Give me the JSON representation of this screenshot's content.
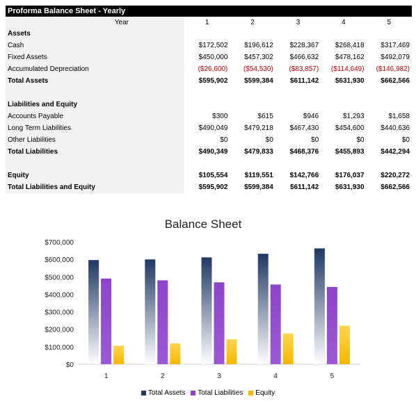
{
  "sheet": {
    "title": "Proforma Balance Sheet - Yearly",
    "year_label": "Year",
    "years": [
      "1",
      "2",
      "3",
      "4",
      "5"
    ],
    "rows": [
      {
        "label": "Assets",
        "style": "section",
        "values": []
      },
      {
        "label": "Cash",
        "style": "normal",
        "values": [
          "$172,502",
          "$196,612",
          "$228,367",
          "$268,418",
          "$317,469"
        ]
      },
      {
        "label": "Fixed Assets",
        "style": "normal",
        "values": [
          "$450,000",
          "$457,302",
          "$466,632",
          "$478,162",
          "$492,079"
        ]
      },
      {
        "label": "Accumulated Depreciation",
        "style": "negative",
        "values": [
          "($26,600)",
          "($54,530)",
          "($83,857)",
          "($114,649)",
          "($146,982)"
        ]
      },
      {
        "label": "Total Assets",
        "style": "total",
        "values": [
          "$595,902",
          "$599,384",
          "$611,142",
          "$631,930",
          "$662,566"
        ]
      },
      {
        "label": "",
        "style": "blank",
        "values": []
      },
      {
        "label": "Liabilities and Equity",
        "style": "section",
        "values": []
      },
      {
        "label": "Accounts Payable",
        "style": "normal",
        "values": [
          "$300",
          "$615",
          "$946",
          "$1,293",
          "$1,658"
        ]
      },
      {
        "label": "Long Term Liabilities",
        "style": "normal",
        "values": [
          "$490,049",
          "$479,218",
          "$467,430",
          "$454,600",
          "$440,636"
        ]
      },
      {
        "label": "Other Liabilities",
        "style": "normal",
        "values": [
          "$0",
          "$0",
          "$0",
          "$0",
          "$0"
        ]
      },
      {
        "label": "Total Liabilities",
        "style": "total",
        "values": [
          "$490,349",
          "$479,833",
          "$468,376",
          "$455,893",
          "$442,294"
        ]
      },
      {
        "label": "",
        "style": "blank",
        "values": []
      },
      {
        "label": "Equity",
        "style": "total",
        "values": [
          "$105,554",
          "$119,551",
          "$142,766",
          "$176,037",
          "$220,272"
        ]
      },
      {
        "label": "Total Liabilities and Equity",
        "style": "total",
        "values": [
          "$595,902",
          "$599,384",
          "$611,142",
          "$631,930",
          "$662,566"
        ]
      }
    ]
  },
  "chart_data": {
    "type": "bar",
    "title": "Balance Sheet",
    "categories": [
      "1",
      "2",
      "3",
      "4",
      "5"
    ],
    "series": [
      {
        "name": "Total Assets",
        "values": [
          595902,
          599384,
          611142,
          631930,
          662566
        ],
        "color": "#1f3864"
      },
      {
        "name": "Total Liabilities",
        "values": [
          490349,
          479833,
          468376,
          455893,
          442294
        ],
        "color": "#8e44c9"
      },
      {
        "name": "Equity",
        "values": [
          105554,
          119551,
          142766,
          176037,
          220272
        ],
        "color": "#f5b800"
      }
    ],
    "ylim": [
      0,
      700000
    ],
    "yticks": [
      "$0",
      "$100,000",
      "$200,000",
      "$300,000",
      "$400,000",
      "$500,000",
      "$600,000",
      "$700,000"
    ],
    "legend_position": "bottom",
    "grid": false
  }
}
